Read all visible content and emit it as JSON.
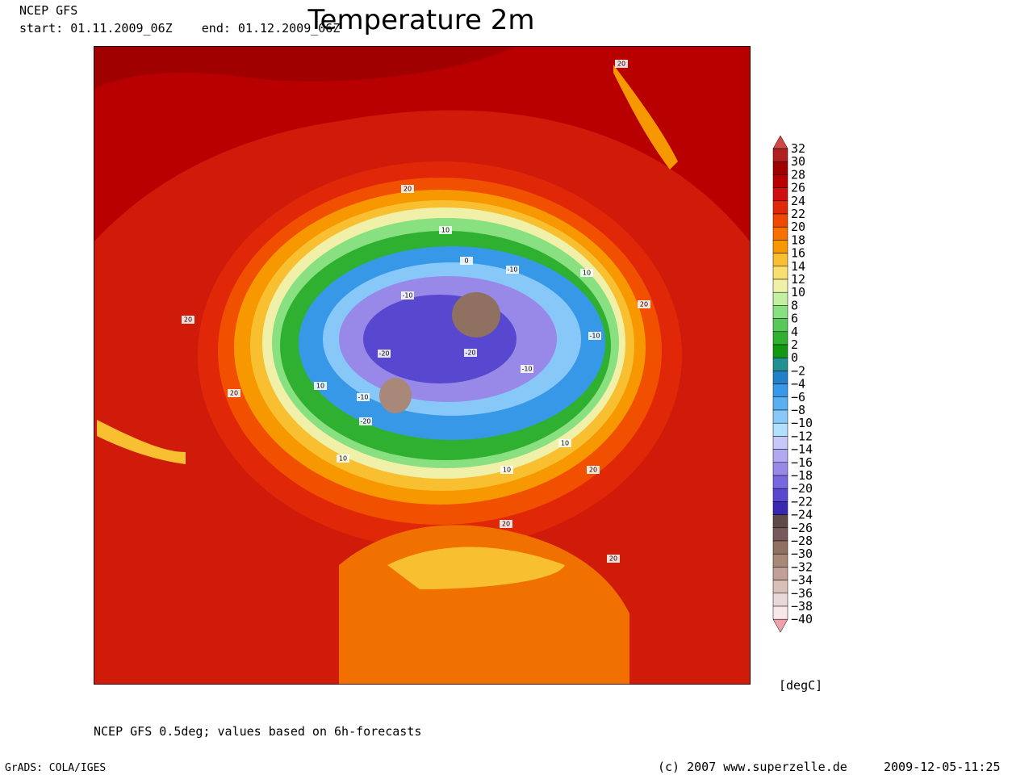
{
  "header": {
    "model": "NCEP GFS",
    "period": "start: 01.11.2009_06Z    end: 01.12.2009_06Z",
    "title": "Temperature 2m"
  },
  "colorbar": {
    "labels": [
      32,
      30,
      28,
      26,
      24,
      22,
      20,
      18,
      16,
      14,
      12,
      10,
      8,
      6,
      4,
      2,
      0,
      -2,
      -4,
      -6,
      -8,
      -10,
      -12,
      -14,
      -16,
      -18,
      -20,
      -22,
      -24,
      -26,
      -28,
      -30,
      -32,
      -34,
      -36,
      -38,
      -40
    ],
    "colors": [
      "#b02020",
      "#a00000",
      "#b80000",
      "#d01010",
      "#e02808",
      "#f04800",
      "#f87000",
      "#f89800",
      "#f8c030",
      "#f8e070",
      "#f0f0a8",
      "#c0f0a0",
      "#88e080",
      "#58c858",
      "#30b030",
      "#109810",
      "#209090",
      "#2080c8",
      "#3898e8",
      "#58b0f0",
      "#88c8f8",
      "#b0e0fc",
      "#c8c8f8",
      "#b0a8f0",
      "#9888e8",
      "#7868e0",
      "#5848d0",
      "#3828b0",
      "#604848",
      "#785858",
      "#907060",
      "#a88878",
      "#c0a098",
      "#d8c0b8",
      "#e8d8d8",
      "#f8e8e8"
    ],
    "over_color": "#d04848",
    "under_color": "#f0a0a8",
    "units": "[degC]"
  },
  "contour_labels": [
    20,
    20,
    10,
    0,
    -10,
    -10,
    -20,
    -20,
    -10,
    -10,
    -20,
    10,
    -10,
    10,
    20,
    20,
    10,
    20,
    20,
    20,
    10,
    10,
    20
  ],
  "footer": {
    "note": "NCEP GFS 0.5deg; values based on 6h-forecasts",
    "software": "GrADS: COLA/IGES",
    "copyright": "(c) 2007 www.superzelle.de",
    "timestamp": "2009-12-05-11:25"
  }
}
